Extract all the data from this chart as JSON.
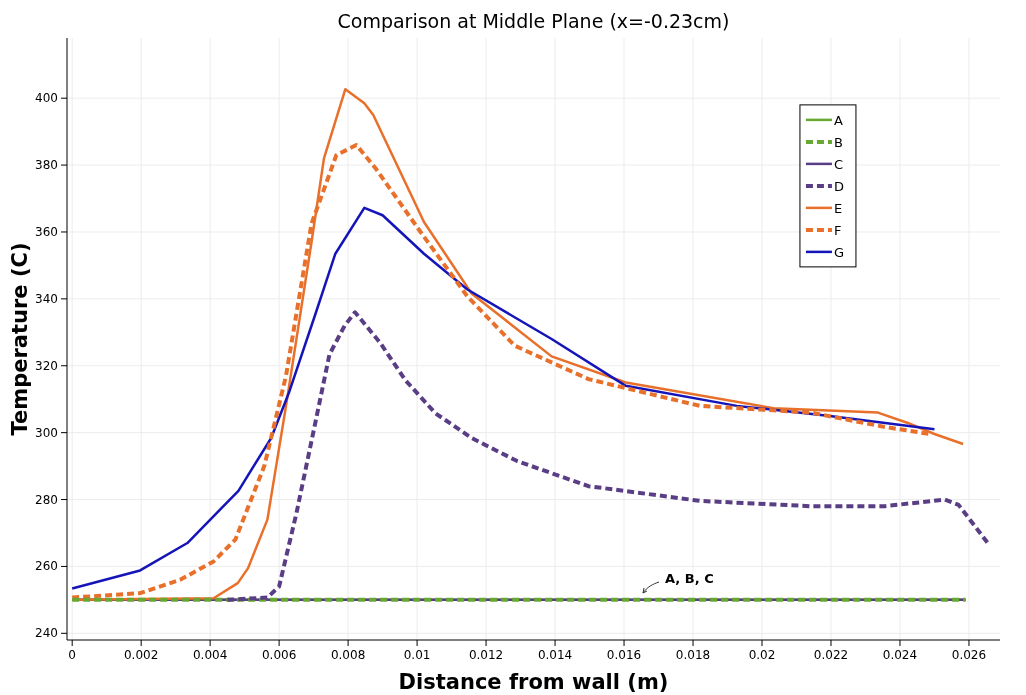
{
  "chart_data": {
    "type": "line",
    "title": "Comparison at Middle Plane (x=-0.23cm)",
    "xlabel": "Distance from wall (m)",
    "ylabel": "Temperature (C)",
    "xlim": [
      -0.00015,
      0.0269
    ],
    "ylim": [
      238,
      418
    ],
    "xticks": [
      0,
      0.002,
      0.004,
      0.006,
      0.008,
      0.01,
      0.012,
      0.014,
      0.016,
      0.018,
      0.02,
      0.022,
      0.024,
      0.026
    ],
    "yticks": [
      240,
      260,
      280,
      300,
      320,
      340,
      360,
      380,
      400
    ],
    "grid": true,
    "legend": "top right",
    "marker": "none",
    "annotations": [
      "A, B, C"
    ],
    "series": [
      {
        "name": "A",
        "color": "#66a832",
        "line_style": "solid",
        "x": [
          0,
          0.0259
        ],
        "values": [
          250,
          250
        ]
      },
      {
        "name": "B",
        "color": "#66a832",
        "line_style": "dashed",
        "x": [
          0,
          0.0259
        ],
        "values": [
          250,
          250
        ]
      },
      {
        "name": "C",
        "color": "#5a3e85",
        "line_style": "solid",
        "x": [
          0,
          0.0259
        ],
        "values": [
          250,
          250
        ]
      },
      {
        "name": "D",
        "color": "#5a3e85",
        "line_style": "dashed",
        "x": [
          0.0045,
          0.00566,
          0.006,
          0.0065,
          0.00705,
          0.00746,
          0.0079,
          0.0082,
          0.00894,
          0.00966,
          0.01053,
          0.01158,
          0.0129,
          0.01497,
          0.0182,
          0.02142,
          0.02356,
          0.0253,
          0.0257,
          0.02658
        ],
        "values": [
          250,
          250.7,
          254,
          275.8,
          303,
          323.4,
          332,
          336,
          326.7,
          315.7,
          305.8,
          298.4,
          291.5,
          284,
          279.6,
          278,
          278,
          280,
          278.4,
          266.5
        ]
      },
      {
        "name": "E",
        "color": "#e8702a",
        "line_style": "solid",
        "x": [
          0,
          0.0041,
          0.0048,
          0.0051,
          0.00566,
          0.0062,
          0.00694,
          0.0073,
          0.00792,
          0.00847,
          0.00873,
          0.0102,
          0.01158,
          0.0139,
          0.01605,
          0.02034,
          0.02336,
          0.02423,
          0.025,
          0.02583
        ],
        "values": [
          250,
          250.5,
          255,
          259.5,
          274,
          308,
          357,
          382,
          402.7,
          398.5,
          395,
          363,
          341.6,
          322.8,
          315,
          307.3,
          306,
          302.9,
          299.6,
          296.6
        ]
      },
      {
        "name": "F",
        "color": "#e8702a",
        "line_style": "dashed",
        "x": [
          0,
          0.00197,
          0.00313,
          0.0041,
          0.00473,
          0.00557,
          0.0062,
          0.00694,
          0.00766,
          0.00824,
          0.0088,
          0.0101,
          0.01146,
          0.01283,
          0.01497,
          0.0182,
          0.02142,
          0.02356,
          0.02487
        ],
        "values": [
          250.7,
          252,
          256,
          261.5,
          268,
          290,
          317,
          362.5,
          383,
          386,
          379,
          360,
          340.7,
          326,
          316,
          308,
          306,
          301.7,
          299.6
        ]
      },
      {
        "name": "G",
        "color": "#1414b8",
        "line_style": "solid",
        "x": [
          0,
          0.00197,
          0.00334,
          0.00482,
          0.00577,
          0.0063,
          0.00705,
          0.00763,
          0.00847,
          0.009,
          0.0102,
          0.01146,
          0.0139,
          0.01605,
          0.01927,
          0.02197,
          0.025
        ],
        "values": [
          253.4,
          258.8,
          267,
          282.6,
          298.4,
          312.4,
          335.4,
          353.5,
          367.2,
          365,
          353.5,
          342.8,
          328,
          314,
          308,
          305,
          301
        ]
      }
    ]
  }
}
